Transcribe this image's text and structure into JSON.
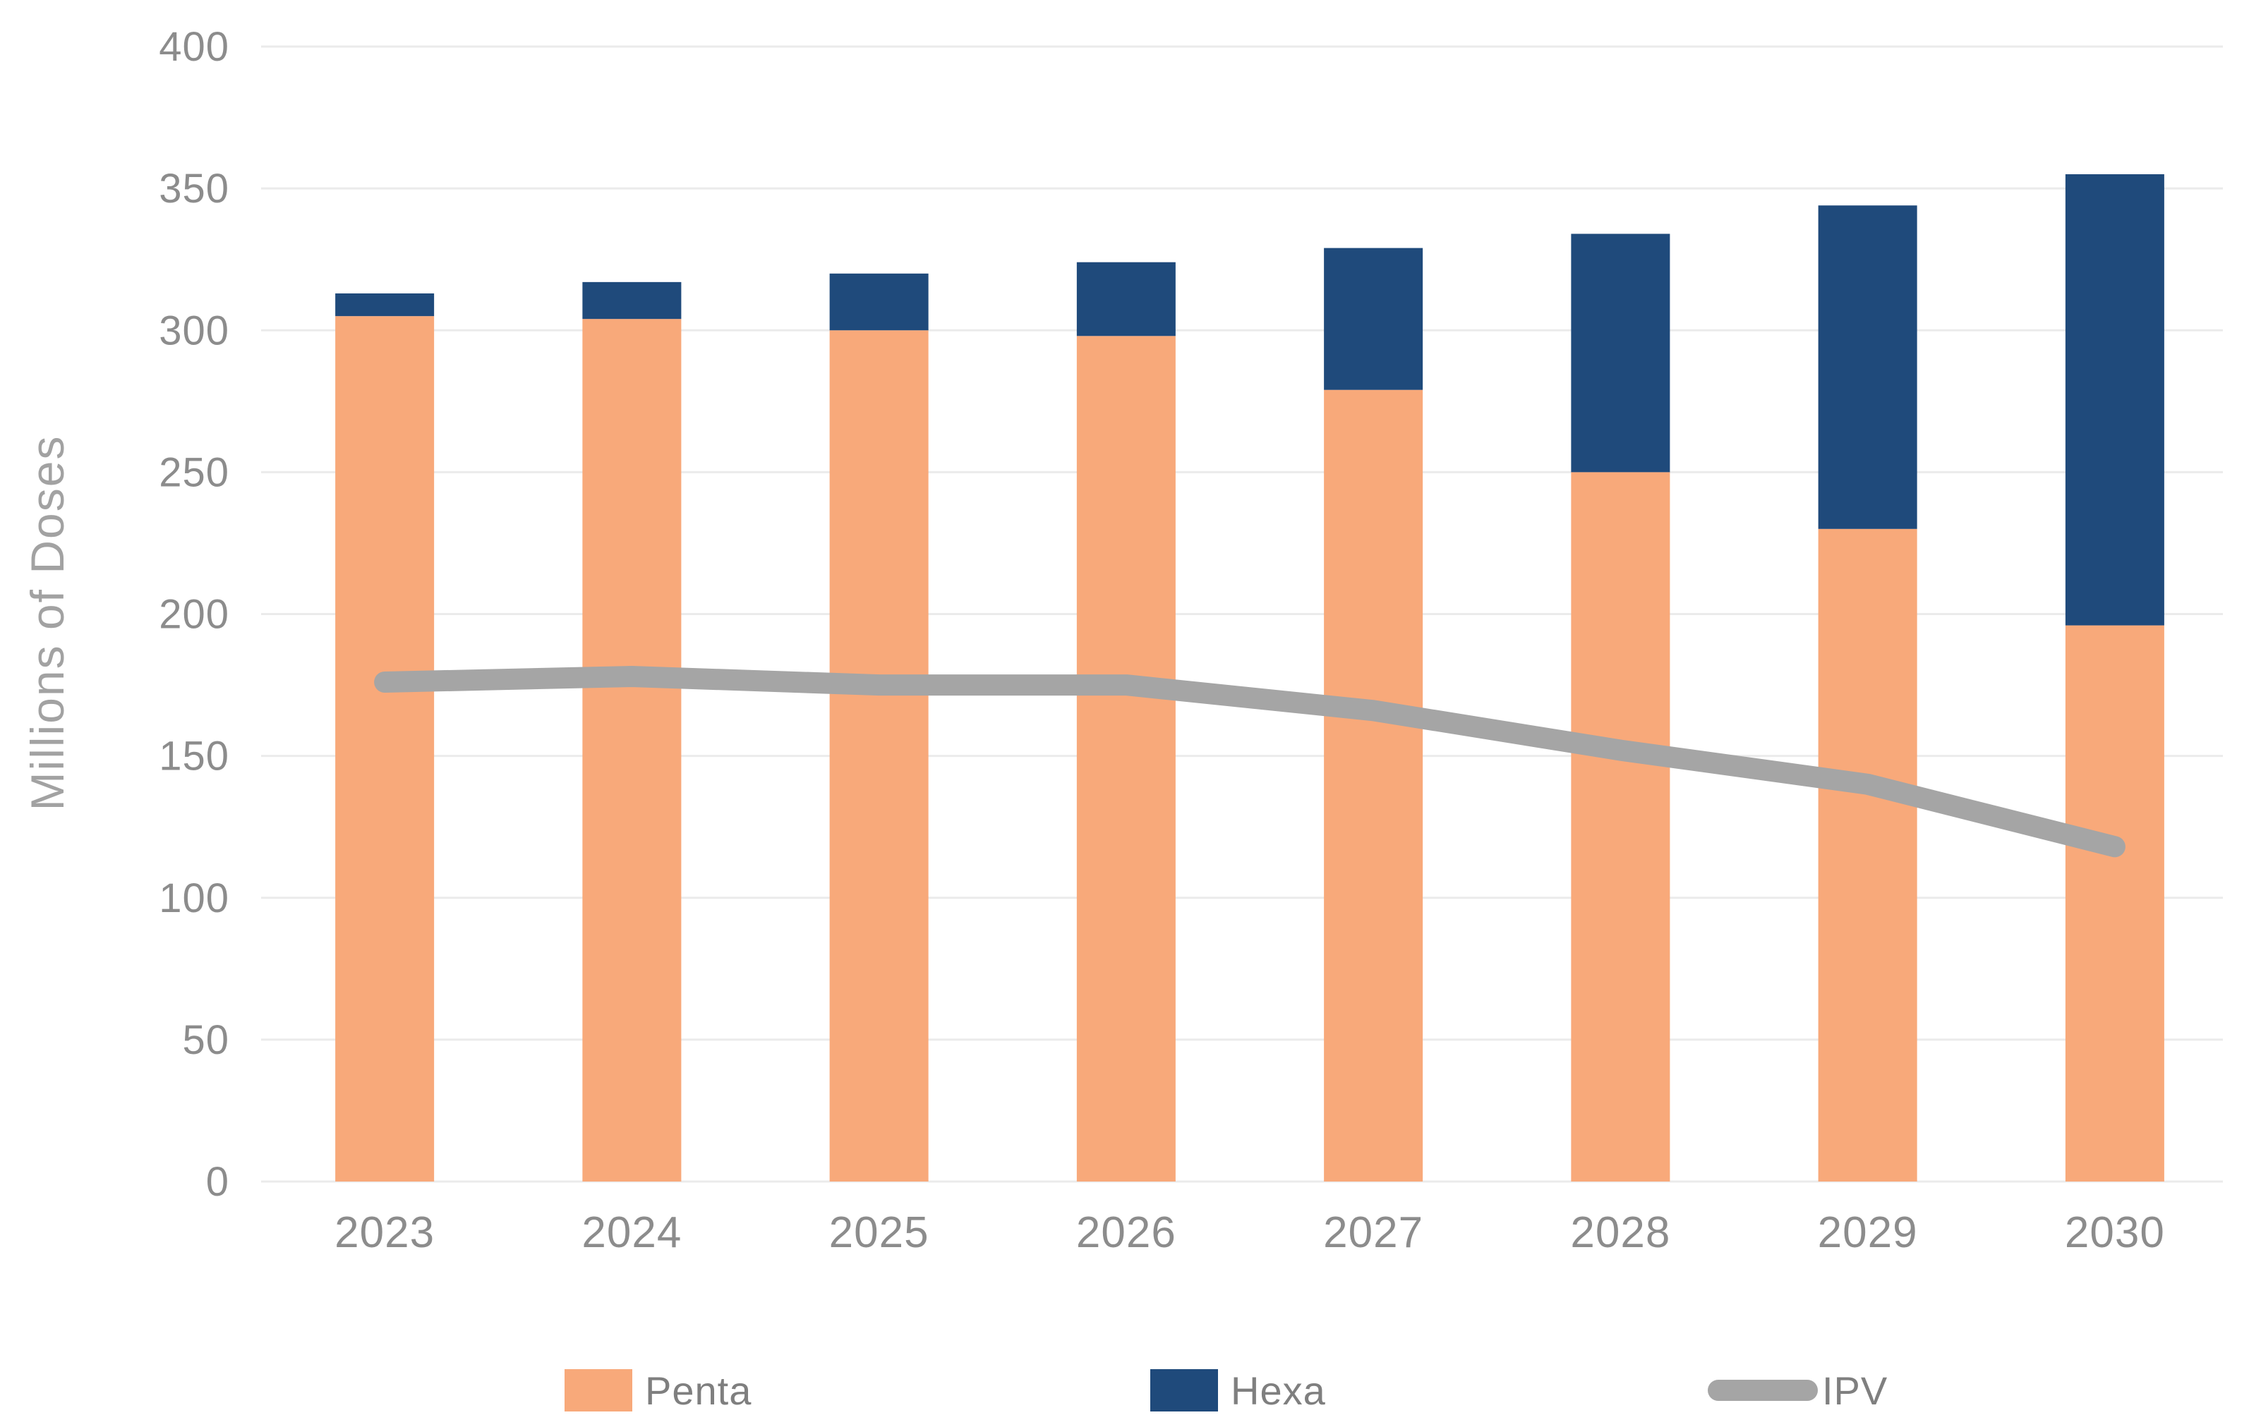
{
  "chart_data": {
    "type": "bar",
    "subtype": "stacked-bar-with-line-overlay",
    "title": "",
    "ylabel": "Millions of Doses",
    "xlabel": "",
    "categories": [
      "2023",
      "2024",
      "2025",
      "2026",
      "2027",
      "2028",
      "2029",
      "2030"
    ],
    "stacked": true,
    "ylim": [
      0,
      400
    ],
    "ytick_step": 50,
    "y_tick_labels": [
      "0",
      "50",
      "100",
      "150",
      "200",
      "250",
      "300",
      "350",
      "400"
    ],
    "grid": true,
    "legend_position": "bottom",
    "series": [
      {
        "name": "Penta",
        "type": "bar",
        "color": "#F8A97A",
        "values": [
          305,
          304,
          300,
          298,
          279,
          250,
          230,
          196
        ]
      },
      {
        "name": "Hexa",
        "type": "bar",
        "color": "#1F4A7B",
        "values": [
          8,
          13,
          20,
          26,
          50,
          84,
          114,
          159
        ]
      },
      {
        "name": "IPV",
        "type": "line",
        "color": "#A5A5A5",
        "values": [
          176,
          178,
          175,
          175,
          166,
          152,
          140,
          118
        ]
      }
    ],
    "colors": {
      "gridline": "#EBEBEB",
      "axis_tick_text": "#8C8C8C",
      "category_text": "#8C8C8C",
      "axis_title_text": "#A2A2A2",
      "legend_text": "#7F7F7F"
    }
  }
}
